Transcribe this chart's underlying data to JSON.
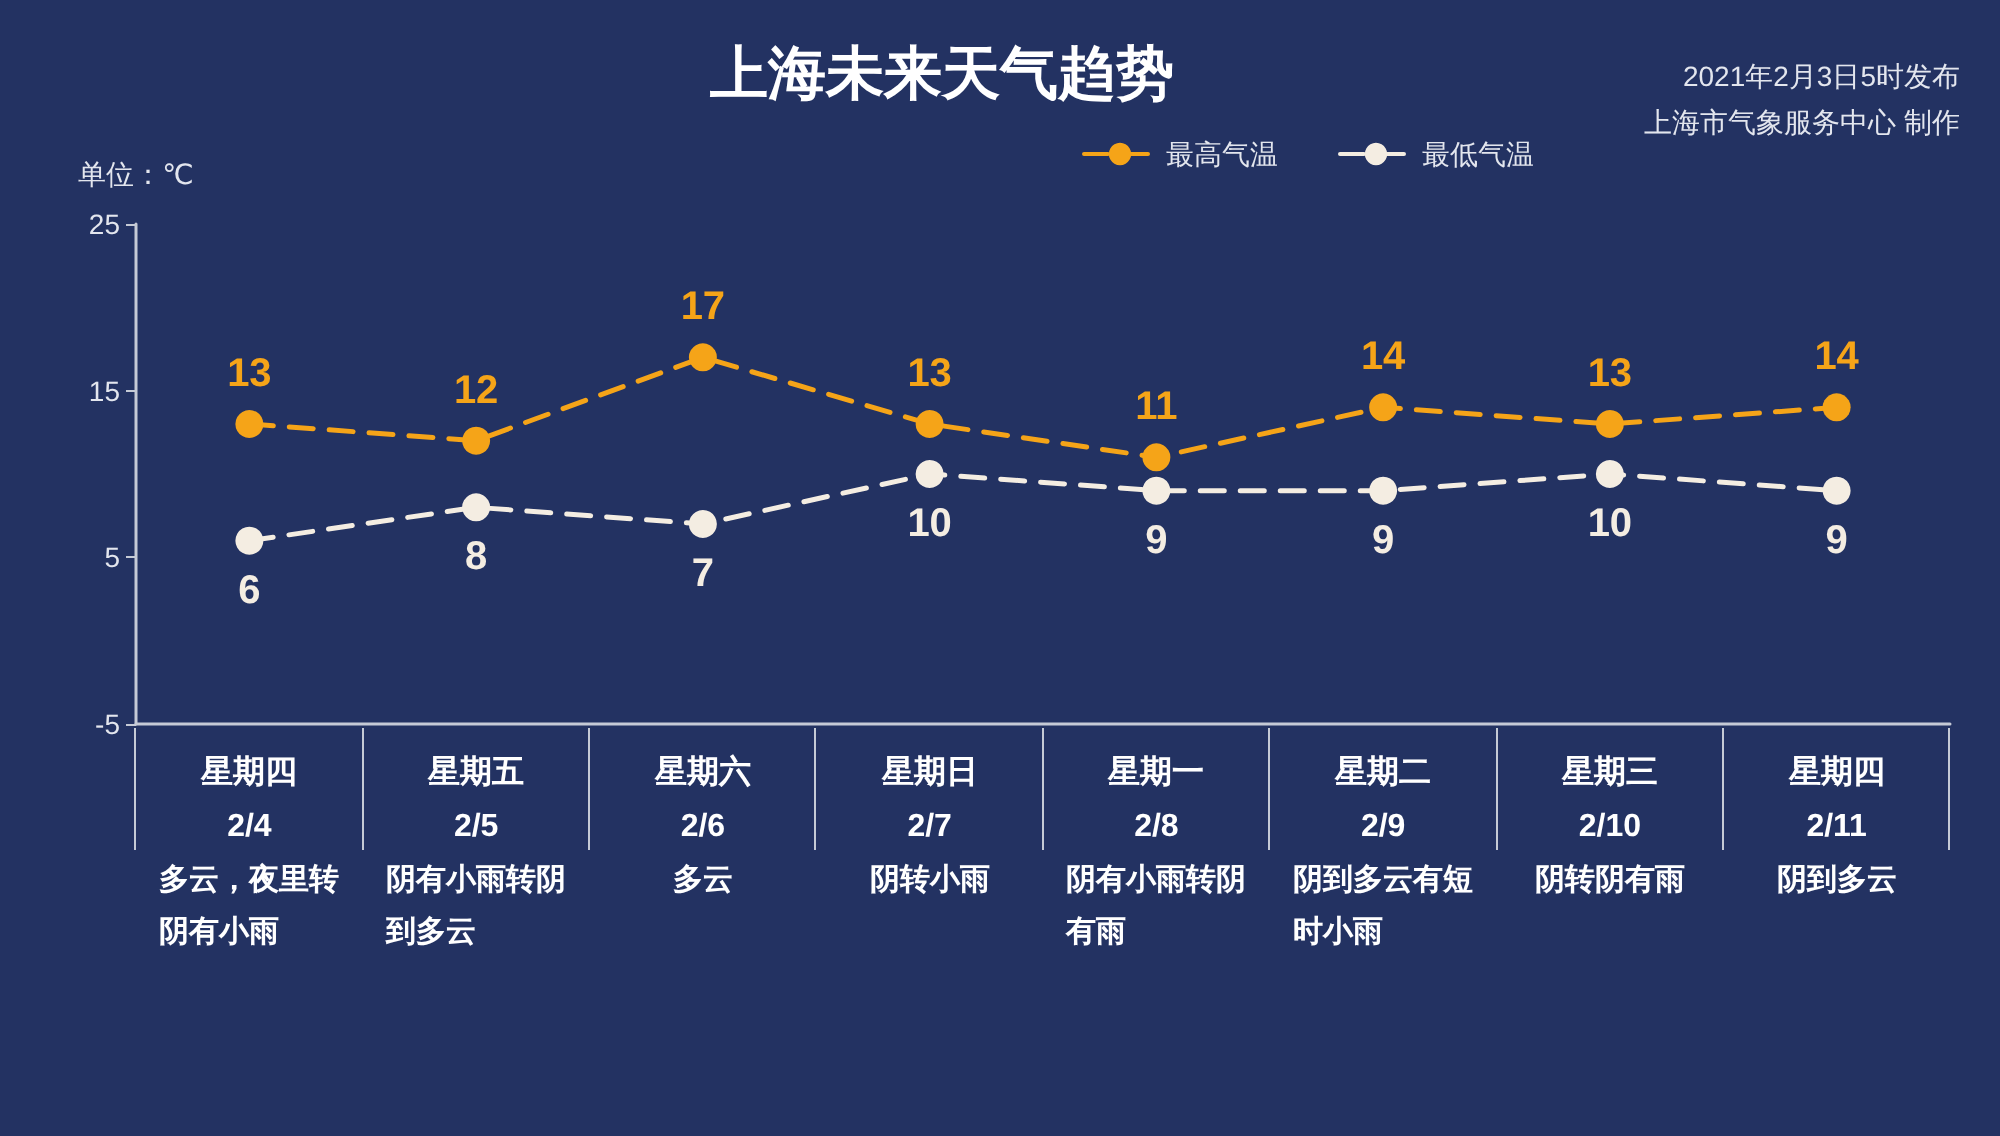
{
  "chart_data": {
    "type": "line",
    "title": "上海未来天气趋势",
    "subtitle": "2021年2月3日5时发布",
    "ylabel": "单位：℃",
    "categories": [
      "星期四\n2/4\n多云，夜里转阴有小雨",
      "星期五\n2/5\n阴有小雨转阴到多云",
      "星期六\n2/6\n多云",
      "星期日\n2/7\n阴转小雨",
      "星期一\n2/8\n阴有小雨转阴有雨",
      "星期二\n2/9\n阴到多云有短时小雨",
      "星期三\n2/10\n阴转阴有雨",
      "星期四\n2/11\n阴到多云"
    ],
    "series": [
      {
        "name": "最高气温",
        "color": "#f5a418",
        "values": [
          13,
          12,
          17,
          13,
          11,
          14,
          13,
          14
        ]
      },
      {
        "name": "最低气温",
        "color": "#f4ede2",
        "values": [
          6,
          8,
          7,
          10,
          9,
          9,
          10,
          9
        ]
      }
    ],
    "ylim": [
      -5,
      25
    ],
    "yticks": [
      -5,
      5,
      15,
      25
    ],
    "grid": false,
    "legend": "top right",
    "marker": "circle",
    "line_style": "dashed",
    "data_labels": true,
    "annotations": [
      "上海市气象服务中心 制作"
    ]
  }
}
